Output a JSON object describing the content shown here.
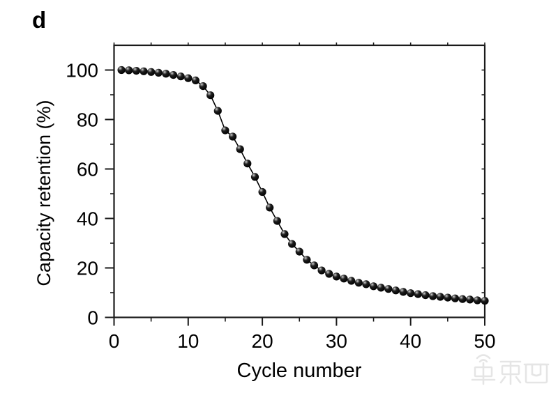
{
  "figure": {
    "panel_label": "d",
    "background_color": "#ffffff",
    "axis_color": "#1a1a1a",
    "text_color": "#000000"
  },
  "watermark": {
    "text": "车东西",
    "color": "#e3e3e3"
  },
  "chart_data": {
    "type": "line",
    "title": "",
    "xlabel": "Cycle number",
    "ylabel": "Capacity retention (%)",
    "xlim": [
      0,
      50
    ],
    "ylim": [
      0,
      110
    ],
    "xticks": [
      0,
      10,
      20,
      30,
      40,
      50
    ],
    "xticks_minor": [
      5,
      15,
      25,
      35,
      45
    ],
    "yticks": [
      0,
      20,
      40,
      60,
      80,
      100
    ],
    "yticks_minor": [
      10,
      30,
      50,
      70,
      90
    ],
    "grid": false,
    "legend_position": "none",
    "marker_style": "glossy-sphere",
    "marker_color": "#000000",
    "line_color": "#000000",
    "series": [
      {
        "name": "capacity-retention",
        "x": [
          1,
          2,
          3,
          4,
          5,
          6,
          7,
          8,
          9,
          10,
          11,
          12,
          13,
          14,
          15,
          16,
          17,
          18,
          19,
          20,
          21,
          22,
          23,
          24,
          25,
          26,
          27,
          28,
          29,
          30,
          31,
          32,
          33,
          34,
          35,
          36,
          37,
          38,
          39,
          40,
          41,
          42,
          43,
          44,
          45,
          46,
          47,
          48,
          49,
          50
        ],
        "y": [
          100.0,
          99.9,
          99.7,
          99.5,
          99.2,
          98.9,
          98.5,
          98.0,
          97.4,
          96.7,
          95.8,
          93.5,
          89.8,
          83.5,
          75.6,
          73.1,
          68.0,
          62.2,
          56.8,
          50.7,
          44.4,
          39.0,
          33.7,
          29.7,
          26.6,
          23.3,
          21.0,
          19.0,
          17.6,
          16.5,
          15.7,
          14.8,
          14.0,
          13.4,
          12.6,
          12.0,
          11.5,
          10.9,
          10.3,
          9.8,
          9.4,
          9.0,
          8.6,
          8.3,
          8.0,
          7.7,
          7.4,
          7.2,
          6.9,
          6.7
        ]
      }
    ]
  }
}
